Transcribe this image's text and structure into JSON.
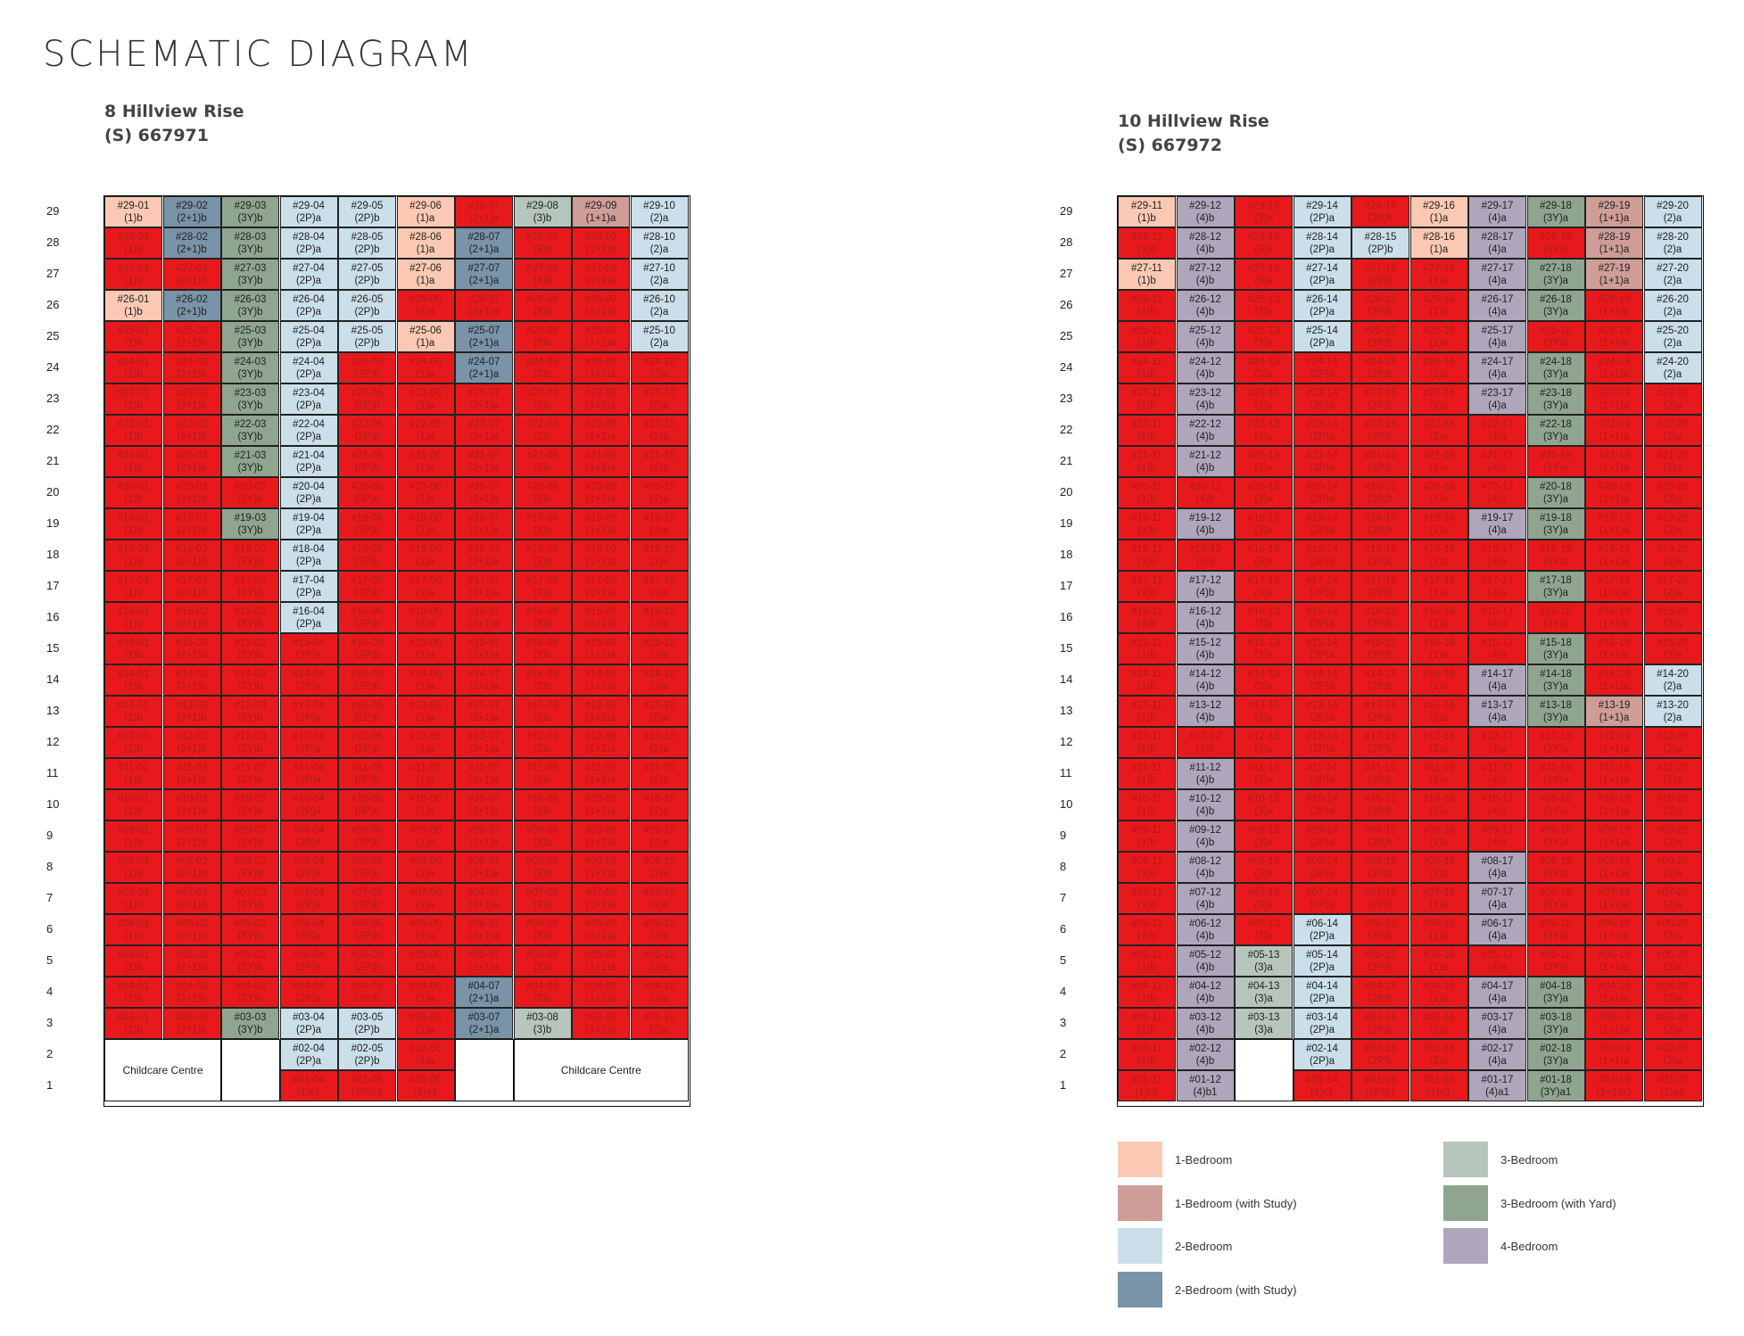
{
  "title": "SCHEMATIC DIAGRAM",
  "colors": {
    "1": "#fbc9b3",
    "1S": "#cf9d97",
    "2": "#cadfe9",
    "2S": "#7993a8",
    "3": "#b6c6bc",
    "3Y": "#8fa58f",
    "4": "#aea6bb",
    "sold": "#e8191c"
  },
  "blocks": [
    {
      "name": "8 Hillview Rise",
      "postal": "(S) 667971",
      "cols": [
        "01",
        "02",
        "03",
        "04",
        "05",
        "06",
        "07",
        "08",
        "09",
        "10"
      ],
      "types": [
        "(1)b",
        "(2+1)b",
        "(3Y)b",
        "(2P)a",
        "(2P)b",
        "(1)a",
        "(2+1)a",
        "(3)b",
        "(1+1)a",
        "(2)a"
      ],
      "cats": [
        "1",
        "2S",
        "3Y",
        "2",
        "2",
        "1",
        "2S",
        "3",
        "1S",
        "2"
      ],
      "avail": [
        {
          "f": 29,
          "c": [
            "01",
            "02",
            "03",
            "04",
            "05",
            "06",
            "08",
            "09",
            "10"
          ]
        },
        {
          "f": 28,
          "c": [
            "02",
            "03",
            "04",
            "05",
            "06",
            "07",
            "10"
          ]
        },
        {
          "f": 27,
          "c": [
            "03",
            "04",
            "05",
            "06",
            "07",
            "10"
          ]
        },
        {
          "f": 26,
          "c": [
            "01",
            "02",
            "03",
            "04",
            "05",
            "10"
          ]
        },
        {
          "f": 25,
          "c": [
            "03",
            "04",
            "05",
            "06",
            "07",
            "10"
          ]
        },
        {
          "f": 24,
          "c": [
            "03",
            "04",
            "07"
          ]
        },
        {
          "f": 23,
          "c": [
            "03",
            "04"
          ]
        },
        {
          "f": 22,
          "c": [
            "03",
            "04"
          ]
        },
        {
          "f": 21,
          "c": [
            "03",
            "04"
          ]
        },
        {
          "f": 20,
          "c": [
            "04"
          ]
        },
        {
          "f": 19,
          "c": [
            "03",
            "04"
          ]
        },
        {
          "f": 18,
          "c": [
            "04"
          ]
        },
        {
          "f": 17,
          "c": [
            "04"
          ]
        },
        {
          "f": 16,
          "c": [
            "04"
          ]
        },
        {
          "f": 4,
          "c": [
            "07"
          ]
        },
        {
          "f": 3,
          "c": [
            "03",
            "04",
            "05",
            "07",
            "08"
          ]
        },
        {
          "f": 2,
          "c": [
            "04",
            "05"
          ]
        }
      ],
      "special": [
        {
          "f": 1,
          "col": "04",
          "type": "(1)c1"
        },
        {
          "f": 1,
          "col": "05",
          "type": "(2P)b1"
        },
        {
          "f": 1,
          "col": "06",
          "type": "(1)a1"
        }
      ],
      "floor2_units": [
        "04",
        "05",
        "06"
      ],
      "floor1_units": [
        "04",
        "05",
        "06"
      ],
      "childcare": [
        "Childcare Centre",
        "Childcare Centre"
      ]
    },
    {
      "name": "10 Hillview Rise",
      "postal": "(S) 667972",
      "cols": [
        "11",
        "12",
        "13",
        "14",
        "15",
        "16",
        "17",
        "18",
        "19",
        "20"
      ],
      "types": [
        "(1)b",
        "(4)b",
        "(3)a",
        "(2P)a",
        "(2P)b",
        "(1)a",
        "(4)a",
        "(3Y)a",
        "(1+1)a",
        "(2)a"
      ],
      "cats": [
        "1",
        "4",
        "3",
        "2",
        "2",
        "1",
        "4",
        "3Y",
        "1S",
        "2"
      ],
      "avail": [
        {
          "f": 29,
          "c": [
            "11",
            "12",
            "14",
            "16",
            "17",
            "18",
            "19",
            "20"
          ]
        },
        {
          "f": 28,
          "c": [
            "12",
            "14",
            "15",
            "16",
            "17",
            "19",
            "20"
          ]
        },
        {
          "f": 27,
          "c": [
            "11",
            "12",
            "14",
            "17",
            "18",
            "19",
            "20"
          ]
        },
        {
          "f": 26,
          "c": [
            "12",
            "14",
            "17",
            "18",
            "20"
          ]
        },
        {
          "f": 25,
          "c": [
            "12",
            "14",
            "17",
            "20"
          ]
        },
        {
          "f": 24,
          "c": [
            "12",
            "17",
            "18",
            "20"
          ]
        },
        {
          "f": 23,
          "c": [
            "12",
            "17",
            "18"
          ]
        },
        {
          "f": 22,
          "c": [
            "12",
            "18"
          ]
        },
        {
          "f": 21,
          "c": [
            "12"
          ]
        },
        {
          "f": 20,
          "c": [
            "18"
          ]
        },
        {
          "f": 19,
          "c": [
            "12",
            "17",
            "18"
          ]
        },
        {
          "f": 17,
          "c": [
            "12",
            "18"
          ]
        },
        {
          "f": 16,
          "c": [
            "12"
          ]
        },
        {
          "f": 15,
          "c": [
            "12",
            "18"
          ]
        },
        {
          "f": 14,
          "c": [
            "12",
            "17",
            "18",
            "20"
          ]
        },
        {
          "f": 13,
          "c": [
            "12",
            "17",
            "18",
            "19",
            "20"
          ]
        },
        {
          "f": 11,
          "c": [
            "12"
          ]
        },
        {
          "f": 10,
          "c": [
            "12"
          ]
        },
        {
          "f": 9,
          "c": [
            "12"
          ]
        },
        {
          "f": 8,
          "c": [
            "12",
            "17"
          ]
        },
        {
          "f": 7,
          "c": [
            "12",
            "17"
          ]
        },
        {
          "f": 6,
          "c": [
            "12",
            "14",
            "17"
          ]
        },
        {
          "f": 5,
          "c": [
            "12",
            "13",
            "14"
          ]
        },
        {
          "f": 4,
          "c": [
            "12",
            "13",
            "14",
            "17",
            "18"
          ]
        },
        {
          "f": 3,
          "c": [
            "12",
            "13",
            "14",
            "17",
            "18"
          ]
        },
        {
          "f": 2,
          "c": [
            "12",
            "14",
            "17",
            "18"
          ]
        },
        {
          "f": 1,
          "c": [
            "12",
            "17",
            "18"
          ]
        }
      ],
      "special": [
        {
          "f": 1,
          "col": "11",
          "type": "(1)b1"
        },
        {
          "f": 1,
          "col": "12",
          "type": "(4)b1"
        },
        {
          "f": 1,
          "col": "14",
          "type": "(1)c1"
        },
        {
          "f": 1,
          "col": "15",
          "type": "(2P)b1"
        },
        {
          "f": 1,
          "col": "16",
          "type": "(1)a1"
        },
        {
          "f": 1,
          "col": "17",
          "type": "(4)a1"
        },
        {
          "f": 1,
          "col": "18",
          "type": "(3Y)a1"
        },
        {
          "f": 1,
          "col": "19",
          "type": "(1+1)a1"
        },
        {
          "f": 1,
          "col": "20",
          "type": "(2)a1"
        }
      ],
      "floor2_units": [
        "11",
        "12",
        "14",
        "15",
        "16",
        "17",
        "18",
        "19",
        "20"
      ],
      "floor1_units": [
        "11",
        "12",
        "14",
        "15",
        "16",
        "17",
        "18",
        "19",
        "20"
      ],
      "childcare": []
    }
  ],
  "legend": [
    {
      "key": "1",
      "label": "1-Bedroom"
    },
    {
      "key": "1S",
      "label": "1-Bedroom (with Study)"
    },
    {
      "key": "2",
      "label": "2-Bedroom"
    },
    {
      "key": "2S",
      "label": "2-Bedroom (with Study)"
    },
    {
      "key": "3",
      "label": "3-Bedroom"
    },
    {
      "key": "3Y",
      "label": "3-Bedroom (with Yard)"
    },
    {
      "key": "4",
      "label": "4-Bedroom"
    }
  ]
}
